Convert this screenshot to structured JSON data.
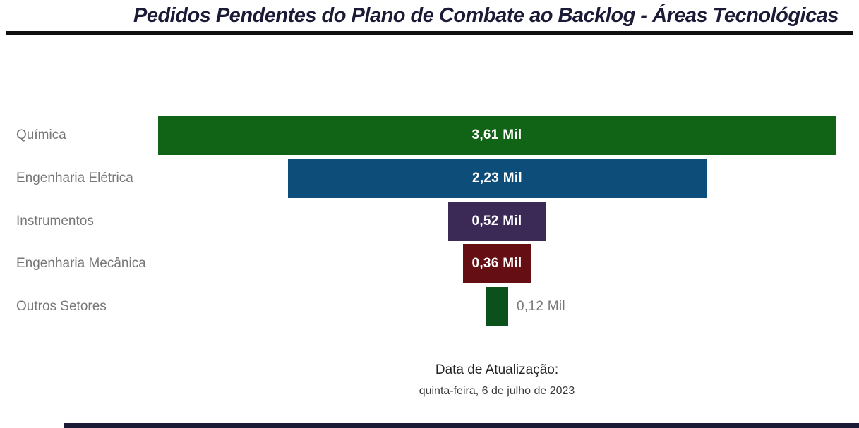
{
  "title": {
    "text": "Pedidos Pendentes do Plano de Combate ao Backlog - Áreas Tecnológicas"
  },
  "chart_data": {
    "type": "bar",
    "subtype": "funnel",
    "orientation": "horizontal",
    "title": "Pedidos Pendentes do Plano de Combate ao Backlog - Áreas Tecnológicas",
    "categories": [
      "Química",
      "Engenharia Elétrica",
      "Instrumentos",
      "Engenharia Mecânica",
      "Outros Setores"
    ],
    "values": [
      3610,
      2230,
      520,
      360,
      120
    ],
    "value_labels": [
      "3,61 Mil",
      "2,23 Mil",
      "0,52 Mil",
      "0,36 Mil",
      "0,12 Mil"
    ],
    "value_label_positions": [
      "inside",
      "inside",
      "inside",
      "inside",
      "outside"
    ],
    "unit": "Mil",
    "max_value": 3610,
    "bar_colors": [
      "#116316",
      "#0D4D7A",
      "#3A2A55",
      "#650E13",
      "#0B511C"
    ],
    "category_label_color": "#777777",
    "inside_value_color": "#FFFFFF",
    "outside_value_color": "#777777",
    "grid": false,
    "legend": false
  },
  "accents": {
    "title_color": "#1b1b38",
    "underline_color": "#111111",
    "bottom_bar_color": "#1b1b35"
  },
  "footer": {
    "label": "Data de Atualização:",
    "date": "quinta-feira, 6 de julho de 2023"
  }
}
